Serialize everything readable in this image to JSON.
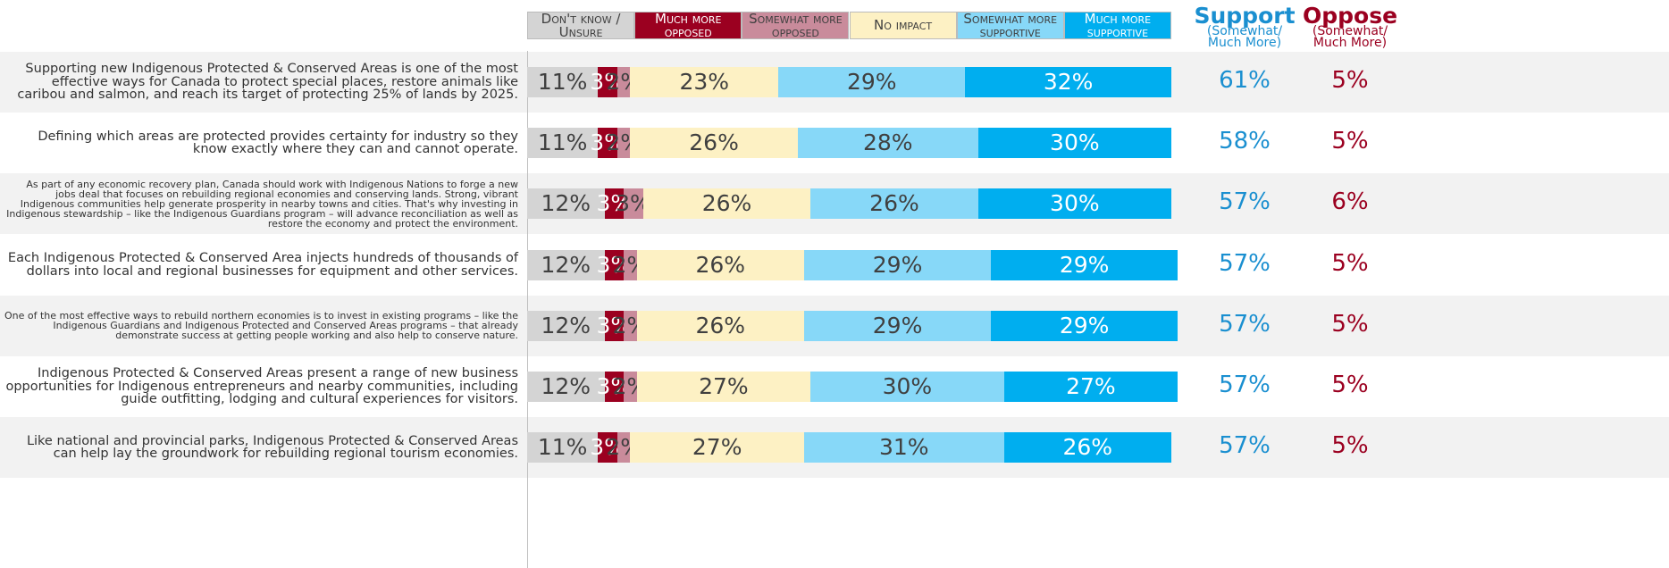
{
  "chart_data": {
    "type": "stacked-bar",
    "orientation": "horizontal",
    "categories": [
      "Supporting new Indigenous Protected & Conserved Areas is one of the most effective ways for Canada to protect special places, restore animals like caribou and salmon, and reach its target of protecting 25% of lands by 2025.",
      "Defining which areas are protected provides certainty for industry so they know exactly where they can and cannot operate.",
      "As part of any economic recovery plan, Canada should work with Indigenous Nations to forge a new jobs deal that focuses on rebuilding regional economies and conserving lands. Strong, vibrant Indigenous communities help generate prosperity in nearby towns and cities. That's why investing in Indigenous stewardship – like the Indigenous Guardians program – will advance reconciliation as well as restore the economy and protect the environment.",
      "Each Indigenous Protected & Conserved Area injects hundreds of thousands of dollars into local and regional businesses for equipment and other services.",
      "One of the most effective ways to rebuild northern economies is to invest in existing programs – like the Indigenous Guardians and Indigenous Protected and Conserved Areas programs – that already demonstrate success at getting people working and also help to conserve nature.",
      "Indigenous Protected & Conserved Areas present a range of new business opportunities for Indigenous entrepreneurs and nearby communities, including guide outfitting, lodging and cultural experiences for visitors.",
      "Like national and provincial parks, Indigenous Protected & Conserved Areas can help lay the groundwork for rebuilding regional tourism economies."
    ],
    "series": [
      {
        "name": "Don't know / Unsure",
        "color": "#d4d4d4",
        "label_color": "#404040",
        "values": [
          11,
          11,
          12,
          12,
          12,
          12,
          11
        ],
        "value_labels": [
          "11%",
          "11%",
          "12%",
          "12%",
          "12%",
          "12%",
          "11%"
        ]
      },
      {
        "name": "Much more opposed",
        "color": "#9b0020",
        "label_color": "#ffffff",
        "values": [
          3,
          3,
          3,
          3,
          3,
          3,
          3
        ],
        "value_labels": [
          "3%",
          "3%",
          "3%",
          "3%",
          "3%",
          "3%",
          "3%"
        ]
      },
      {
        "name": "Somewhat more opposed",
        "color": "#c98b9b",
        "label_color": "#404040",
        "values": [
          2,
          2,
          3,
          2,
          2,
          2,
          2
        ],
        "value_labels": [
          "2%",
          "2%",
          "3%",
          "2%",
          "2%",
          "2%",
          "2%"
        ]
      },
      {
        "name": "No impact",
        "color": "#fdf1c4",
        "label_color": "#404040",
        "values": [
          23,
          26,
          26,
          26,
          26,
          27,
          27
        ],
        "value_labels": [
          "23%",
          "26%",
          "26%",
          "26%",
          "26%",
          "27%",
          "27%"
        ]
      },
      {
        "name": "Somewhat more supportive",
        "color": "#87d8f8",
        "label_color": "#404040",
        "values": [
          29,
          28,
          26,
          29,
          29,
          30,
          31
        ],
        "value_labels": [
          "29%",
          "28%",
          "26%",
          "29%",
          "29%",
          "30%",
          "31%"
        ]
      },
      {
        "name": "Much more supportive",
        "color": "#00aeef",
        "label_color": "#ffffff",
        "values": [
          32,
          30,
          30,
          29,
          29,
          27,
          26
        ],
        "value_labels": [
          "32%",
          "30%",
          "30%",
          "29%",
          "29%",
          "27%",
          "26%"
        ]
      }
    ],
    "xlim": [
      0,
      100
    ],
    "support": {
      "title": "Support",
      "subtitle": "(Somewhat/ Much More)",
      "color": "#1a8fd0",
      "values": [
        61,
        58,
        57,
        57,
        57,
        57,
        57
      ],
      "value_labels": [
        "61%",
        "58%",
        "57%",
        "57%",
        "57%",
        "57%",
        "57%"
      ]
    },
    "oppose": {
      "title": "Oppose",
      "subtitle": "(Somewhat/ Much More)",
      "color": "#9b0020",
      "values": [
        5,
        5,
        6,
        5,
        5,
        5,
        5
      ],
      "value_labels": [
        "5%",
        "5%",
        "6%",
        "5%",
        "5%",
        "5%",
        "5%"
      ]
    }
  }
}
